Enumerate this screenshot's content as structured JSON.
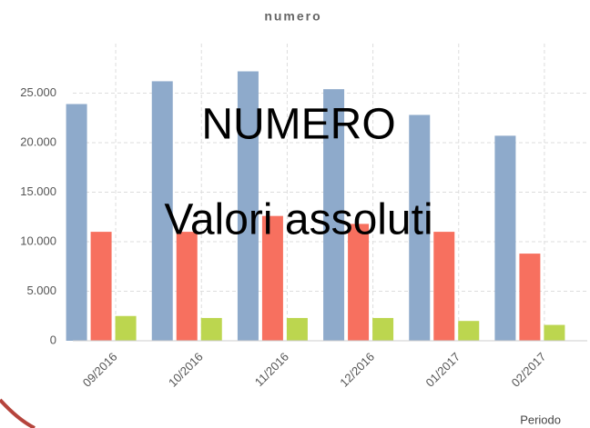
{
  "chart_data": {
    "type": "bar",
    "title": "numero",
    "annotations": [
      "NUMERO",
      "Valori assoluti"
    ],
    "x_label": "Periodo",
    "categories": [
      "09/2016",
      "10/2016",
      "11/2016",
      "12/2016",
      "01/2017",
      "02/2017"
    ],
    "series": [
      {
        "color": "#8eaacb",
        "values": [
          23900,
          26200,
          27200,
          25400,
          22800,
          20700
        ]
      },
      {
        "color": "#f7705f",
        "values": [
          11000,
          11000,
          12600,
          11800,
          11000,
          8800
        ]
      },
      {
        "color": "#bcd64f",
        "values": [
          2500,
          2300,
          2300,
          2300,
          2000,
          1600
        ]
      }
    ],
    "ylim": [
      0,
      30000
    ],
    "yticks": [
      0,
      {
        "value": 5000,
        "label": "5.000"
      },
      {
        "value": 10000,
        "label": "10.000"
      },
      {
        "value": 15000,
        "label": "15.000"
      },
      {
        "value": 20000,
        "label": "20.000"
      },
      {
        "value": 25000,
        "label": "25.000"
      }
    ],
    "grid": true
  }
}
